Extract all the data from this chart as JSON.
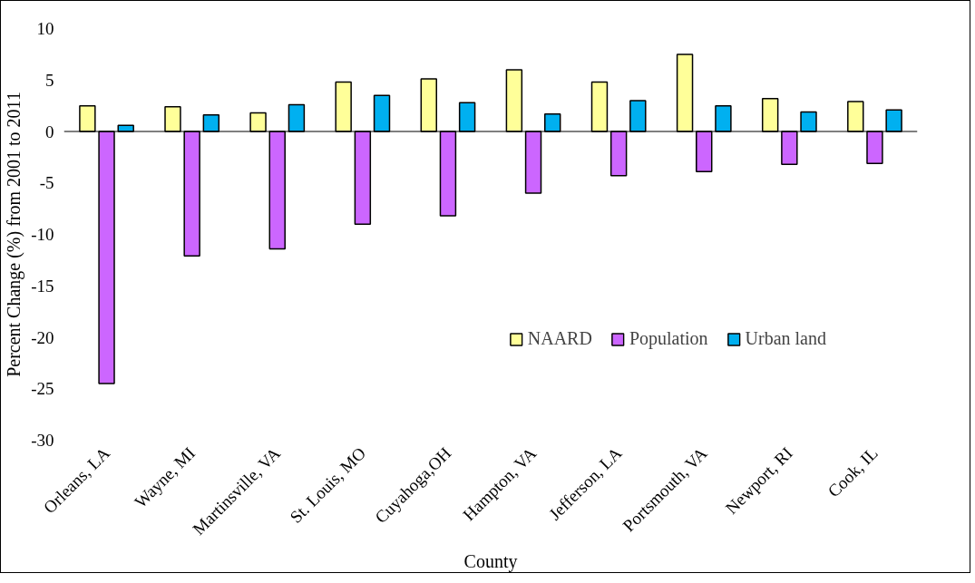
{
  "chart_data": {
    "type": "bar",
    "xlabel": "County",
    "ylabel": "Percent Change (%) from 2001 to 2011",
    "categories": [
      "Orleans, LA",
      "Wayne, MI",
      "Martinsville, VA",
      "St. Louis, MO",
      "Cuyahoga,OH",
      "Hampton, VA",
      "Jefferson, LA",
      "Portsmouth, VA",
      "Newport, RI",
      "Cook, IL"
    ],
    "series": [
      {
        "name": "NAARD",
        "color": "#ffff99",
        "values": [
          2.5,
          2.4,
          1.8,
          4.8,
          5.1,
          6.0,
          4.8,
          7.5,
          3.2,
          2.9
        ]
      },
      {
        "name": "Population",
        "color": "#cc66ff",
        "values": [
          -24.5,
          -12.1,
          -11.4,
          -9.0,
          -8.2,
          -6.0,
          -4.3,
          -3.9,
          -3.2,
          -3.1
        ]
      },
      {
        "name": "Urban land",
        "color": "#00b0f0",
        "values": [
          0.6,
          1.6,
          2.6,
          3.5,
          2.8,
          1.7,
          3.0,
          2.5,
          1.9,
          2.1
        ]
      }
    ],
    "ylim": [
      -30,
      10
    ],
    "yticks": [
      -30,
      -25,
      -20,
      -15,
      -10,
      -5,
      0,
      5,
      10
    ],
    "grid": false,
    "ref_lines": [
      {
        "axis": "y",
        "value": 0,
        "color": "#000000"
      }
    ],
    "legend": "bottom right"
  }
}
